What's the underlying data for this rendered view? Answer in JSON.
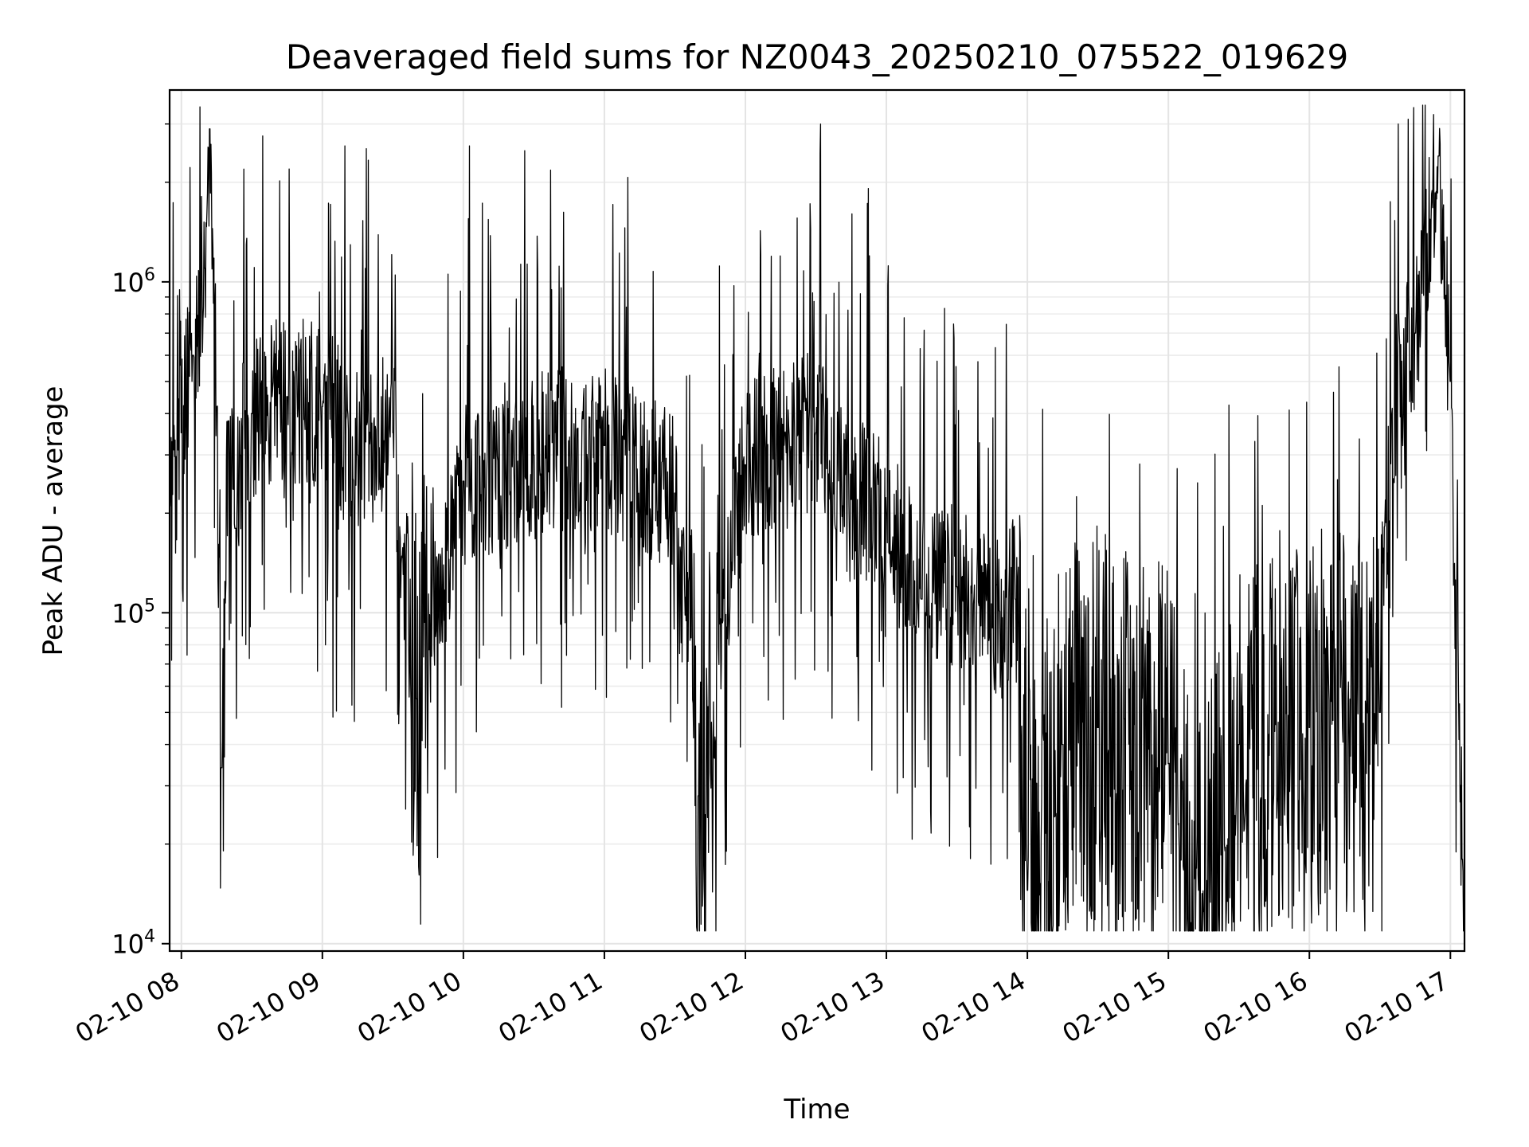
{
  "chart_data": {
    "type": "line",
    "title": "Deaveraged field sums for NZ0043_20250210_075522_019629",
    "xlabel": "Time",
    "ylabel": "Peak ADU - average",
    "yscale": "log",
    "ylim": [
      9500,
      3800000
    ],
    "xlim": [
      "2025-02-10 07:55",
      "2025-02-10 17:06"
    ],
    "grid": true,
    "line_color": "#000000",
    "x_ticks": [
      "02-10 08",
      "02-10 09",
      "02-10 10",
      "02-10 11",
      "02-10 12",
      "02-10 13",
      "02-10 14",
      "02-10 15",
      "02-10 16",
      "02-10 17"
    ],
    "y_ticks": [
      {
        "value": 10000,
        "base": "10",
        "exp": "4"
      },
      {
        "value": 100000,
        "base": "10",
        "exp": "5"
      },
      {
        "value": 1000000,
        "base": "10",
        "exp": "6"
      }
    ],
    "series": [
      {
        "x": [
          "2025-02-10 07:55",
          "2025-02-10 08:00",
          "2025-02-10 08:05",
          "2025-02-10 08:10",
          "2025-02-10 08:12",
          "2025-02-10 08:15",
          "2025-02-10 08:17",
          "2025-02-10 08:20",
          "2025-02-10 08:23",
          "2025-02-10 08:25",
          "2025-02-10 08:30",
          "2025-02-10 08:45",
          "2025-02-10 09:00",
          "2025-02-10 09:15",
          "2025-02-10 09:30",
          "2025-02-10 09:40",
          "2025-02-10 10:00",
          "2025-02-10 10:30",
          "2025-02-10 11:00",
          "2025-02-10 11:30",
          "2025-02-10 11:40",
          "2025-02-10 12:00",
          "2025-02-10 12:30",
          "2025-02-10 12:45",
          "2025-02-10 13:00",
          "2025-02-10 13:15",
          "2025-02-10 13:30",
          "2025-02-10 13:45",
          "2025-02-10 13:55",
          "2025-02-10 14:00",
          "2025-02-10 14:15",
          "2025-02-10 14:30",
          "2025-02-10 15:00",
          "2025-02-10 15:15",
          "2025-02-10 15:30",
          "2025-02-10 16:00",
          "2025-02-10 16:30",
          "2025-02-10 16:35",
          "2025-02-10 16:45",
          "2025-02-10 16:55",
          "2025-02-10 17:00",
          "2025-02-10 17:05"
        ],
        "values": [
          210000,
          350000,
          600000,
          1100000,
          2900000,
          420000,
          34000,
          380000,
          180000,
          300000,
          400000,
          450000,
          420000,
          300000,
          350000,
          55000,
          250000,
          300000,
          320000,
          230000,
          28000,
          280000,
          350000,
          220000,
          200000,
          110000,
          120000,
          90000,
          110000,
          14500,
          40000,
          45000,
          35000,
          12500,
          40000,
          45000,
          50000,
          400000,
          700000,
          2400000,
          500000,
          18000
        ]
      }
    ]
  }
}
